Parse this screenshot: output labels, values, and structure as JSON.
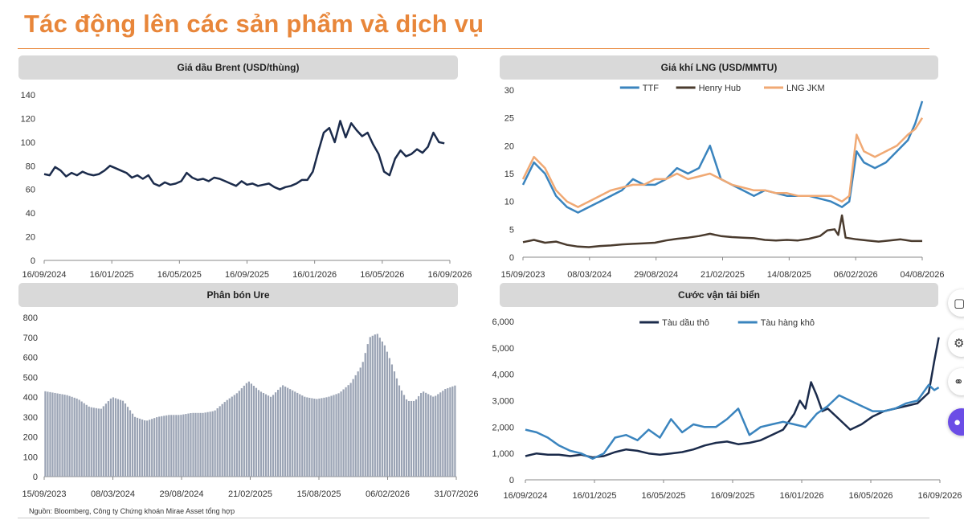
{
  "page": {
    "title": "Tác động lên các sản phẩm và dịch vụ",
    "source": "Nguồn: Bloomberg, Công ty Chứng khoán Mirae Asset tổng hợp",
    "side_icons": [
      "square-icon",
      "gear-icon",
      "share-icon",
      "assistant-icon"
    ]
  },
  "chart_data": [
    {
      "id": "brent",
      "type": "line",
      "title": "Giá dầu Brent (USD/thùng)",
      "x_tick_labels": [
        "16/09/2024",
        "16/01/2025",
        "16/05/2025",
        "16/09/2025",
        "16/01/2026",
        "16/05/2026",
        "16/09/2026"
      ],
      "y_ticks": [
        0,
        20,
        40,
        60,
        80,
        100,
        120,
        140
      ],
      "ylim": [
        0,
        140
      ],
      "x_range_days": [
        0,
        740
      ],
      "series": [
        {
          "color": "#1b2b4b",
          "x": [
            0,
            10,
            20,
            30,
            40,
            50,
            60,
            70,
            80,
            90,
            100,
            110,
            120,
            130,
            140,
            150,
            160,
            170,
            180,
            190,
            200,
            210,
            220,
            230,
            240,
            250,
            260,
            270,
            280,
            290,
            300,
            310,
            320,
            330,
            340,
            350,
            360,
            370,
            380,
            390,
            400,
            410,
            420,
            430,
            440,
            450,
            460,
            470,
            480,
            490,
            500,
            510,
            520,
            530,
            540,
            550,
            560,
            570,
            580,
            590,
            600,
            610,
            620,
            630,
            640,
            650,
            660,
            670,
            680,
            690,
            700,
            710,
            720,
            730
          ],
          "y": [
            73,
            72,
            79,
            76,
            71,
            74,
            72,
            75,
            73,
            72,
            73,
            76,
            80,
            78,
            76,
            74,
            70,
            72,
            69,
            72,
            65,
            63,
            66,
            64,
            65,
            67,
            74,
            70,
            68,
            69,
            67,
            70,
            69,
            67,
            65,
            63,
            67,
            64,
            65,
            63,
            64,
            65,
            62,
            60,
            62,
            63,
            65,
            68,
            68,
            75,
            92,
            108,
            112,
            100,
            118,
            104,
            116,
            110,
            105,
            108,
            98,
            90,
            75,
            72,
            86,
            93,
            88,
            90,
            94,
            91,
            96,
            108,
            100,
            99
          ]
        }
      ]
    },
    {
      "id": "lng",
      "type": "line",
      "title": "Giá khí LNG (USD/MMTU)",
      "x_tick_labels": [
        "15/09/2023",
        "08/03/2024",
        "29/08/2024",
        "21/02/2025",
        "14/08/2025",
        "06/02/2026",
        "04/08/2026"
      ],
      "y_ticks": [
        0,
        5,
        10,
        15,
        20,
        25,
        30
      ],
      "ylim": [
        0,
        30
      ],
      "x_range_days": [
        0,
        1089
      ],
      "legend_position": "top",
      "series": [
        {
          "name": "TTF",
          "color": "#3a84be",
          "x": [
            0,
            30,
            60,
            90,
            120,
            150,
            180,
            210,
            240,
            270,
            300,
            330,
            360,
            390,
            420,
            450,
            480,
            510,
            540,
            570,
            600,
            630,
            660,
            690,
            720,
            750,
            780,
            810,
            840,
            870,
            890,
            910,
            930,
            960,
            990,
            1020,
            1050,
            1070,
            1089
          ],
          "y": [
            13,
            17,
            15,
            11,
            9,
            8,
            9,
            10,
            11,
            12,
            14,
            13,
            13,
            14,
            16,
            15,
            16,
            20,
            14,
            13,
            12,
            11,
            12,
            11.5,
            11,
            11,
            11,
            10.5,
            10,
            9,
            10,
            19,
            17,
            16,
            17,
            19,
            21,
            24,
            28
          ]
        },
        {
          "name": "Henry Hub",
          "color": "#4a3b2e",
          "x": [
            0,
            30,
            60,
            90,
            120,
            150,
            180,
            210,
            240,
            270,
            300,
            330,
            360,
            390,
            420,
            450,
            480,
            510,
            540,
            570,
            600,
            630,
            660,
            690,
            720,
            750,
            780,
            810,
            830,
            850,
            860,
            870,
            880,
            910,
            940,
            970,
            1000,
            1030,
            1060,
            1089
          ],
          "y": [
            2.7,
            3.1,
            2.6,
            2.8,
            2.2,
            1.9,
            1.8,
            2.0,
            2.1,
            2.3,
            2.4,
            2.5,
            2.6,
            3.0,
            3.3,
            3.5,
            3.8,
            4.2,
            3.8,
            3.6,
            3.5,
            3.4,
            3.1,
            3.0,
            3.1,
            3.0,
            3.3,
            3.8,
            4.8,
            5.0,
            4.0,
            7.5,
            3.5,
            3.2,
            3.0,
            2.8,
            3.0,
            3.2,
            2.9,
            2.9
          ]
        },
        {
          "name": "LNG JKM",
          "color": "#f0a974",
          "x": [
            0,
            30,
            60,
            90,
            120,
            150,
            180,
            210,
            240,
            270,
            300,
            330,
            360,
            390,
            420,
            450,
            480,
            510,
            540,
            570,
            600,
            630,
            660,
            690,
            720,
            750,
            780,
            810,
            840,
            870,
            890,
            910,
            930,
            960,
            990,
            1020,
            1050,
            1070,
            1089
          ],
          "y": [
            14,
            18,
            16,
            12,
            10,
            9,
            10,
            11,
            12,
            12.5,
            13,
            13,
            14,
            14,
            15,
            14,
            14.5,
            15,
            14,
            13,
            12.5,
            12,
            12,
            11.5,
            11.5,
            11,
            11,
            11,
            11,
            10,
            11,
            22,
            19,
            18,
            19,
            20,
            22,
            23,
            25
          ]
        }
      ]
    },
    {
      "id": "urea",
      "type": "bar",
      "title": "Phân bón Ure",
      "x_tick_labels": [
        "15/09/2023",
        "08/03/2024",
        "29/08/2024",
        "21/02/2025",
        "15/08/2025",
        "06/02/2026",
        "31/07/2026"
      ],
      "y_ticks": [
        0,
        100,
        200,
        300,
        400,
        500,
        600,
        700,
        800
      ],
      "ylim": [
        0,
        800
      ],
      "x_range_days": [
        0,
        1089
      ],
      "series": [
        {
          "color": "#9aa3b4",
          "x": [
            0,
            30,
            60,
            90,
            120,
            150,
            180,
            210,
            240,
            270,
            300,
            330,
            360,
            390,
            420,
            450,
            480,
            510,
            540,
            570,
            600,
            630,
            660,
            690,
            720,
            750,
            780,
            810,
            840,
            860,
            880,
            900,
            920,
            940,
            960,
            980,
            1000,
            1030,
            1060,
            1089
          ],
          "y": [
            430,
            420,
            410,
            390,
            350,
            340,
            400,
            380,
            300,
            280,
            300,
            310,
            310,
            320,
            320,
            330,
            380,
            420,
            480,
            430,
            400,
            460,
            430,
            400,
            390,
            400,
            420,
            470,
            560,
            700,
            720,
            660,
            560,
            450,
            380,
            380,
            430,
            400,
            440,
            460
          ]
        }
      ]
    },
    {
      "id": "freight",
      "type": "line",
      "title": "Cước vận tải biển",
      "x_tick_labels": [
        "16/09/2024",
        "16/01/2025",
        "16/05/2025",
        "16/09/2025",
        "16/01/2026",
        "16/05/2026",
        "16/09/2026"
      ],
      "y_ticks": [
        "0",
        "1,000",
        "2,000",
        "3,000",
        "4,000",
        "5,000",
        "6,000"
      ],
      "ylim": [
        0,
        6000
      ],
      "x_range_days": [
        0,
        740
      ],
      "legend_position": "top",
      "series": [
        {
          "name": "Tàu dầu thô",
          "color": "#1b2b4b",
          "x": [
            0,
            20,
            40,
            60,
            80,
            100,
            120,
            140,
            160,
            180,
            200,
            220,
            240,
            260,
            280,
            300,
            320,
            340,
            360,
            380,
            400,
            420,
            440,
            460,
            480,
            490,
            500,
            510,
            520,
            530,
            540,
            560,
            580,
            600,
            620,
            640,
            660,
            680,
            700,
            720,
            730,
            738
          ],
          "y": [
            900,
            1000,
            950,
            950,
            900,
            950,
            850,
            900,
            1050,
            1150,
            1100,
            1000,
            950,
            1000,
            1050,
            1150,
            1300,
            1400,
            1450,
            1350,
            1400,
            1500,
            1700,
            1900,
            2500,
            3000,
            2700,
            3700,
            3200,
            2600,
            2700,
            2300,
            1900,
            2100,
            2400,
            2600,
            2700,
            2800,
            2900,
            3300,
            4500,
            5400
          ]
        },
        {
          "name": "Tàu hàng khô",
          "color": "#3a84be",
          "x": [
            0,
            20,
            40,
            60,
            80,
            100,
            120,
            140,
            160,
            180,
            200,
            220,
            240,
            260,
            280,
            300,
            320,
            340,
            360,
            380,
            400,
            420,
            440,
            460,
            480,
            500,
            520,
            540,
            560,
            580,
            600,
            620,
            640,
            660,
            680,
            700,
            720,
            730,
            738
          ],
          "y": [
            1900,
            1800,
            1600,
            1300,
            1100,
            1000,
            800,
            1000,
            1600,
            1700,
            1500,
            1900,
            1600,
            2300,
            1800,
            2100,
            2000,
            2000,
            2300,
            2700,
            1700,
            2000,
            2100,
            2200,
            2100,
            2000,
            2500,
            2800,
            3200,
            3000,
            2800,
            2600,
            2600,
            2700,
            2900,
            3000,
            3600,
            3400,
            3500
          ]
        }
      ]
    }
  ]
}
